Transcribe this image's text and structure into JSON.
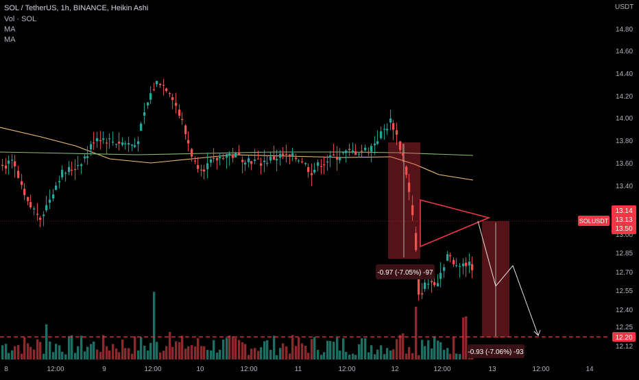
{
  "header": {
    "title": "SOL / TetherUS, 1h, BINANCE, Heikin Ashi",
    "indicators": [
      "Vol · SOL",
      "MA",
      "MA"
    ]
  },
  "price_axis": {
    "currency": "USDT",
    "labels": [
      "14.80",
      "14.60",
      "14.40",
      "14.20",
      "14.00",
      "13.80",
      "13.60",
      "13.40",
      "13.00",
      "12.85",
      "12.70",
      "12.55",
      "12.40",
      "12.25",
      "12.12"
    ]
  },
  "time_axis": {
    "labels": [
      "8",
      "12:00",
      "9",
      "12:00",
      "10",
      "12:00",
      "11",
      "12:00",
      "12",
      "12:00",
      "13",
      "12:00",
      "14"
    ]
  },
  "badges": {
    "symbol": "SOLUSDT",
    "price_top": "13.14",
    "price_mid": "13.13",
    "price_bot": "13.50",
    "target": "12.20"
  },
  "measures": [
    {
      "text": "-0.97 (-7.05%) -97"
    },
    {
      "text": "-0.93 (-7.06%) -93"
    }
  ],
  "colors": {
    "up": "#26a69a",
    "down": "#ef5350",
    "ma_fast": "#f3c27a",
    "ma_slow": "#8fbf7a",
    "target_line": "#f23645",
    "badge": "#f23645"
  },
  "chart_data": {
    "type": "candlestick",
    "title": "SOL / TetherUS, 1h, BINANCE, Heikin Ashi",
    "x_range": [
      "8",
      "14"
    ],
    "y_range": [
      12.1,
      15.0
    ],
    "last_price": 13.13,
    "target_price": 12.2,
    "ohlc_anchors": [
      {
        "x": "8",
        "close": 13.58
      },
      {
        "x": "8 12:00",
        "close": 13.52
      },
      {
        "x": "9",
        "close": 13.7
      },
      {
        "x": "9 12:00",
        "close": 13.95
      },
      {
        "x": "10",
        "close": 13.58
      },
      {
        "x": "10 12:00",
        "close": 13.63
      },
      {
        "x": "11",
        "close": 13.62
      },
      {
        "x": "11 12:00",
        "close": 13.65
      },
      {
        "x": "12",
        "close": 13.72
      },
      {
        "x": "12 12:00",
        "close": 13.1
      },
      {
        "x": "12 18:00",
        "close": 13.15
      }
    ],
    "moving_averages": [
      {
        "indicator": "MA",
        "x": [
          "8",
          "9 12:00",
          "11",
          "12",
          "12 12:00"
        ],
        "y": [
          13.92,
          13.66,
          13.68,
          13.7,
          13.46
        ]
      },
      {
        "indicator": "MA",
        "x": [
          "8",
          "9 12:00",
          "11",
          "12",
          "12 12:00"
        ],
        "y": [
          13.72,
          13.67,
          13.7,
          13.69,
          13.68
        ]
      }
    ],
    "measurements": [
      {
        "label": "-0.97 (-7.05%) -97",
        "from": 13.8,
        "to": 12.83
      },
      {
        "label": "-0.93 (-7.06%) -93",
        "from": 13.13,
        "to": 12.2
      }
    ],
    "projection": {
      "x": [
        "12 18:00",
        "13",
        "13 06:00",
        "13 12:00"
      ],
      "y": [
        13.13,
        12.6,
        12.8,
        12.2
      ]
    },
    "grid": false
  }
}
